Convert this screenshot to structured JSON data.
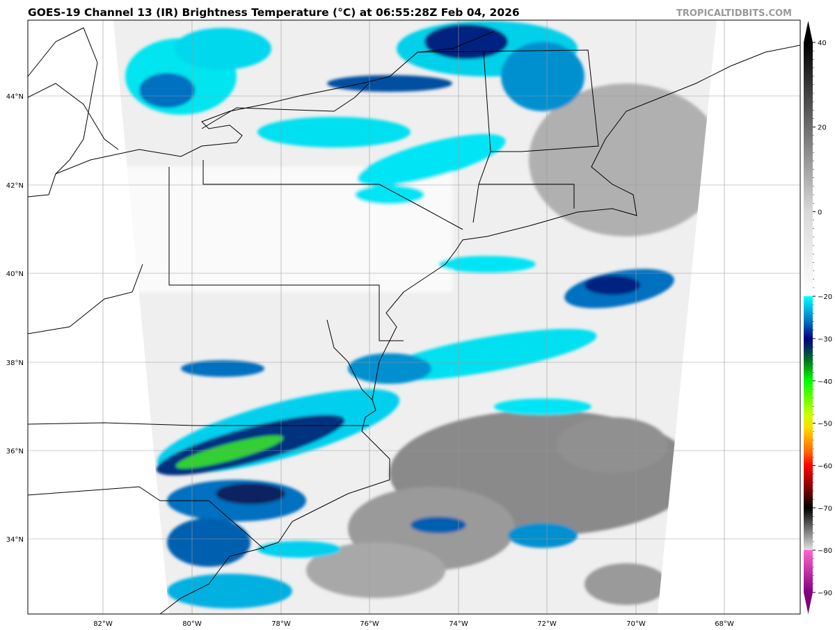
{
  "header": {
    "title": "GOES-19 Channel 13 (IR) Brightness Temperature (°C) at 06:55:28Z Feb 04, 2026",
    "watermark": "TROPICALTIDBITS.COM"
  },
  "map": {
    "longitude_ticks": [
      "82°W",
      "80°W",
      "78°W",
      "76°W",
      "74°W",
      "72°W",
      "70°W",
      "68°W"
    ],
    "latitude_ticks": [
      "44°N",
      "42°N",
      "40°N",
      "38°N",
      "36°N",
      "34°N"
    ],
    "grid": true
  },
  "colorbar": {
    "ticks": [
      "40",
      "20",
      "0",
      "−20",
      "−30",
      "−40",
      "−50",
      "−60",
      "−70",
      "−80",
      "−90"
    ],
    "range": [
      -90,
      40
    ],
    "extend": "both",
    "stops": [
      {
        "value": 40,
        "color": "#000000"
      },
      {
        "value": 0,
        "color": "#d9d9d9"
      },
      {
        "value": -20,
        "color": "#ffffff"
      },
      {
        "value": -20,
        "color": "#00ffff"
      },
      {
        "value": -26,
        "color": "#0070c0"
      },
      {
        "value": -30,
        "color": "#000080"
      },
      {
        "value": -33,
        "color": "#004050"
      },
      {
        "value": -35,
        "color": "#007020"
      },
      {
        "value": -40,
        "color": "#00ff00"
      },
      {
        "value": -48,
        "color": "#ccff00"
      },
      {
        "value": -51,
        "color": "#ffdd00"
      },
      {
        "value": -57,
        "color": "#ff6000"
      },
      {
        "value": -60,
        "color": "#ff0000"
      },
      {
        "value": -66,
        "color": "#700000"
      },
      {
        "value": -70,
        "color": "#000000"
      },
      {
        "value": -79.9,
        "color": "#e0e0e0"
      },
      {
        "value": -80,
        "color": "#ff66cc"
      },
      {
        "value": -90,
        "color": "#800080"
      }
    ]
  }
}
